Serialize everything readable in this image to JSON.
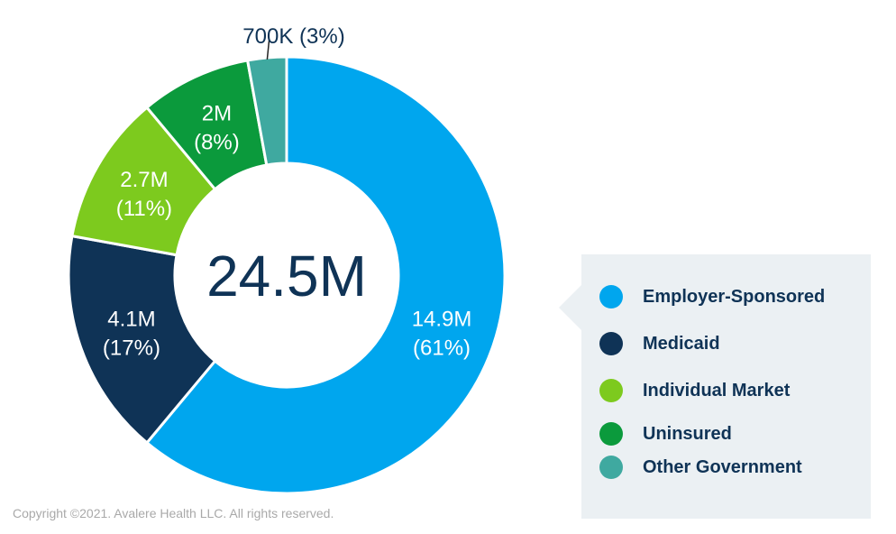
{
  "chart_data": {
    "type": "donut",
    "center_label": "24.5M",
    "slices": [
      {
        "name": "Employer-Sponsored",
        "value": 14.9,
        "label": "14.9M",
        "percent_label": "(61%)",
        "color": "#00A6EE",
        "label_color": "#FFFFFF"
      },
      {
        "name": "Medicaid",
        "value": 4.1,
        "label": "4.1M",
        "percent_label": "(17%)",
        "color": "#0F3356",
        "label_color": "#FFFFFF"
      },
      {
        "name": "Individual Market",
        "value": 2.7,
        "label": "2.7M",
        "percent_label": "(11%)",
        "color": "#7DCA1E",
        "label_color": "#FFFFFF"
      },
      {
        "name": "Uninsured",
        "value": 2.0,
        "label": "2M",
        "percent_label": "(8%)",
        "color": "#0B9A3C",
        "label_color": "#FFFFFF"
      },
      {
        "name": "Other Government",
        "value": 0.7,
        "label": "700K (3%)",
        "percent_label": "",
        "color": "#3FA9A0",
        "label_color": "#0F3356",
        "label_outside": true
      }
    ],
    "legend_placement": "right"
  },
  "legend": {
    "items": [
      {
        "label": "Employer-Sponsored",
        "color": "#00A6EE"
      },
      {
        "label": "Medicaid",
        "color": "#0F3356"
      },
      {
        "label": "Individual Market",
        "color": "#7DCA1E"
      },
      {
        "label": "Uninsured",
        "color": "#0B9A3C"
      },
      {
        "label": "Other Government",
        "color": "#3FA9A0"
      }
    ]
  },
  "footer": {
    "copyright": "Copyright ©2021. Avalere Health LLC. All rights reserved."
  }
}
